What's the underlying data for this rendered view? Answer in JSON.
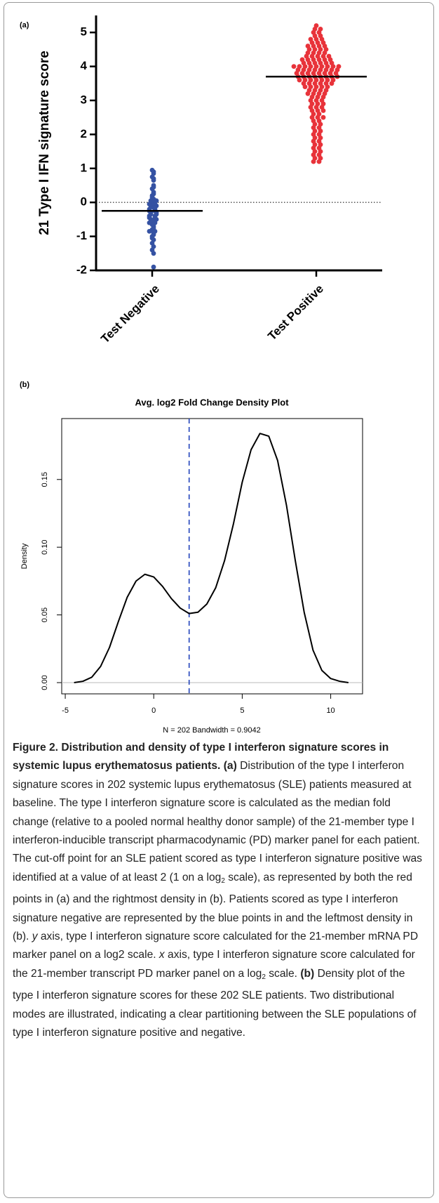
{
  "chart_data": [
    {
      "type": "strip",
      "panel_label": "(a)",
      "ylabel": "21 Type I IFN signature score",
      "categories": [
        "Test Negative",
        "Test Positive"
      ],
      "ylim": [
        -2,
        5.5
      ],
      "yticks": [
        -2,
        -1,
        0,
        1,
        2,
        3,
        4,
        5
      ],
      "reference_line": 0,
      "series": [
        {
          "color": "#3552a3",
          "center": -0.25,
          "values": [
            0.95,
            0.9,
            0.85,
            0.75,
            0.7,
            0.65,
            0.5,
            0.45,
            0.4,
            0.3,
            0.25,
            0.2,
            0.15,
            0.1,
            0.05,
            0.05,
            0,
            -0.05,
            -0.05,
            -0.1,
            -0.1,
            -0.15,
            -0.2,
            -0.2,
            -0.25,
            -0.25,
            -0.3,
            -0.3,
            -0.35,
            -0.35,
            -0.4,
            -0.4,
            -0.45,
            -0.45,
            -0.5,
            -0.5,
            -0.55,
            -0.6,
            -0.6,
            -0.65,
            -0.7,
            -0.75,
            -0.8,
            -0.85,
            -0.85,
            -0.9,
            -0.95,
            -1.0,
            -1.05,
            -1.1,
            -1.2,
            -1.3,
            -1.4,
            -1.5,
            -1.9
          ]
        },
        {
          "color": "#e8333a",
          "center": 3.7,
          "values": [
            5.2,
            5.1,
            5.1,
            5.0,
            5.0,
            4.9,
            4.9,
            4.8,
            4.8,
            4.8,
            4.7,
            4.7,
            4.7,
            4.6,
            4.6,
            4.6,
            4.6,
            4.5,
            4.5,
            4.5,
            4.5,
            4.4,
            4.4,
            4.4,
            4.4,
            4.3,
            4.3,
            4.3,
            4.3,
            4.3,
            4.2,
            4.2,
            4.2,
            4.2,
            4.2,
            4.2,
            4.1,
            4.1,
            4.1,
            4.1,
            4.1,
            4.1,
            4.0,
            4.0,
            4.0,
            4.0,
            4.0,
            4.0,
            4.0,
            4.0,
            4.0,
            3.9,
            3.9,
            3.9,
            3.9,
            3.9,
            3.9,
            3.9,
            3.9,
            3.8,
            3.8,
            3.8,
            3.8,
            3.8,
            3.8,
            3.8,
            3.8,
            3.7,
            3.7,
            3.7,
            3.7,
            3.7,
            3.7,
            3.7,
            3.7,
            3.6,
            3.6,
            3.6,
            3.6,
            3.6,
            3.6,
            3.6,
            3.5,
            3.5,
            3.5,
            3.5,
            3.5,
            3.5,
            3.4,
            3.4,
            3.4,
            3.4,
            3.4,
            3.3,
            3.3,
            3.3,
            3.3,
            3.2,
            3.2,
            3.2,
            3.2,
            3.1,
            3.1,
            3.1,
            3.0,
            3.0,
            3.0,
            2.9,
            2.9,
            2.9,
            2.8,
            2.8,
            2.8,
            2.7,
            2.7,
            2.7,
            2.6,
            2.6,
            2.5,
            2.5,
            2.5,
            2.4,
            2.4,
            2.3,
            2.3,
            2.2,
            2.2,
            2.1,
            2.1,
            2.0,
            2.0,
            1.9,
            1.9,
            1.8,
            1.8,
            1.7,
            1.7,
            1.6,
            1.6,
            1.5,
            1.5,
            1.4,
            1.4,
            1.3,
            1.3,
            1.2,
            1.2
          ]
        }
      ]
    },
    {
      "type": "line",
      "panel_label": "(b)",
      "title": "Avg. log2 Fold Change Density Plot",
      "xlabel": "N = 202   Bandwidth = 0.9042",
      "ylabel": "Density",
      "xlim": [
        -5.2,
        11.8
      ],
      "ylim": [
        -0.0083,
        0.195
      ],
      "xticks": [
        -5,
        0,
        5,
        10
      ],
      "yticks": [
        {
          "value": 0,
          "label": "0.00"
        },
        0.05,
        {
          "value": 0.1,
          "label": "0.10"
        },
        0.15
      ],
      "reference_line": 0,
      "cutoff": 2,
      "color": "#000000",
      "cutoff_color": "#2244bb",
      "x": [
        -4.5,
        -4,
        -3.5,
        -3,
        -2.5,
        -2,
        -1.5,
        -1,
        -0.5,
        0,
        0.5,
        1,
        1.5,
        2,
        2.5,
        3,
        3.5,
        4,
        4.5,
        5,
        5.5,
        6,
        6.5,
        7,
        7.5,
        8,
        8.5,
        9,
        9.5,
        10,
        10.5,
        11
      ],
      "values": [
        0.0,
        0.001,
        0.004,
        0.012,
        0.026,
        0.045,
        0.063,
        0.075,
        0.08,
        0.078,
        0.071,
        0.062,
        0.055,
        0.051,
        0.052,
        0.058,
        0.07,
        0.09,
        0.117,
        0.148,
        0.172,
        0.184,
        0.182,
        0.164,
        0.131,
        0.09,
        0.052,
        0.024,
        0.009,
        0.003,
        0.001,
        0.0
      ]
    }
  ],
  "caption": {
    "runs": [
      "Figure 2. Distribution and density of type I interferon signature scores in systemic lupus erythematosus patients. (a)",
      " Distribution of the type I interferon signature scores in 202 systemic lupus erythematosus (SLE) patients measured at baseline. The type I interferon signature score is calculated as the median fold change (relative to a pooled normal healthy donor sample) of the 21-member type I interferon-inducible transcript pharmacodynamic (PD) marker panel for each patient. The cut-off point for an SLE patient scored as type I interferon signature positive was identified at a value of at least 2 (1 on a log",
      "2",
      " scale), as represented by both the red points in (a) and the rightmost density in (b). Patients scored as type I interferon signature negative are represented by the blue points in and the leftmost density in (b). ",
      "y",
      " axis, type I interferon signature score calculated for the 21-member mRNA PD marker panel on a log2 scale. ",
      "x",
      " axis, type I interferon signature score calculated for the 21-member transcript PD marker panel on a log",
      "2",
      " scale. ",
      "(b)",
      " Density plot of the type I interferon signature scores for these 202 SLE patients. Two distributional modes are illustrated, indicating a clear partitioning between the SLE populations of type I interferon signature positive and negative."
    ]
  }
}
